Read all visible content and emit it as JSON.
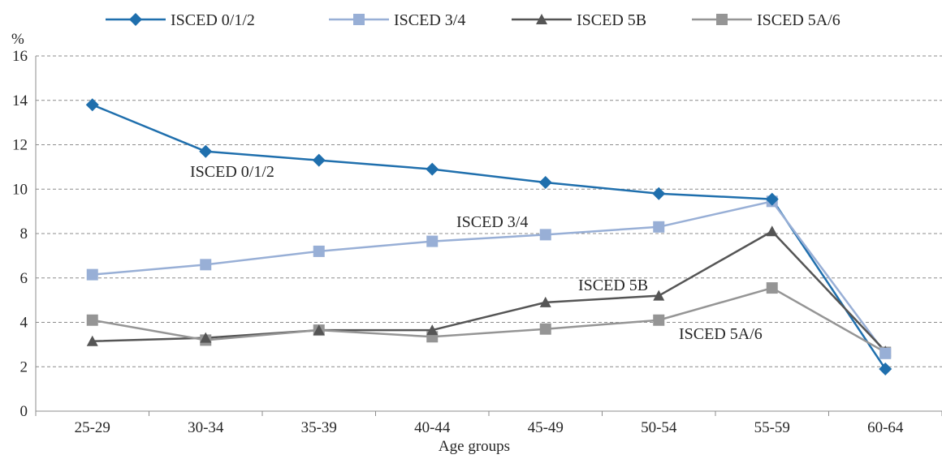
{
  "chart_data": {
    "type": "line",
    "title": "",
    "xlabel": "Age groups",
    "ylabel": "%",
    "ylim": [
      0,
      16
    ],
    "yticks": [
      0,
      2,
      4,
      6,
      8,
      10,
      12,
      14,
      16
    ],
    "grid": "horizontal-dashed",
    "legend": "top",
    "categories": [
      "25-29",
      "30-34",
      "35-39",
      "40-44",
      "45-49",
      "50-54",
      "55-59",
      "60-64"
    ],
    "series": [
      {
        "name": "ISCED 0/1/2",
        "marker": "diamond",
        "color": "#1f6fad",
        "values": [
          13.8,
          11.7,
          11.3,
          10.9,
          10.3,
          9.8,
          9.55,
          1.9
        ],
        "annotation": "ISCED 0/1/2"
      },
      {
        "name": "ISCED 3/4",
        "marker": "square",
        "color": "#98afd6",
        "values": [
          6.15,
          6.6,
          7.2,
          7.65,
          7.95,
          8.3,
          9.45,
          2.6
        ],
        "annotation": "ISCED 3/4"
      },
      {
        "name": "ISCED 5B",
        "marker": "triangle",
        "color": "#555555",
        "values": [
          3.15,
          3.3,
          3.65,
          3.65,
          4.9,
          5.2,
          8.1,
          2.7
        ],
        "annotation": "ISCED 5B"
      },
      {
        "name": "ISCED 5A/6",
        "marker": "square",
        "color": "#959595",
        "values": [
          4.1,
          3.2,
          3.65,
          3.35,
          3.7,
          4.1,
          5.55,
          2.65
        ],
        "annotation": "ISCED 5A/6"
      }
    ]
  }
}
